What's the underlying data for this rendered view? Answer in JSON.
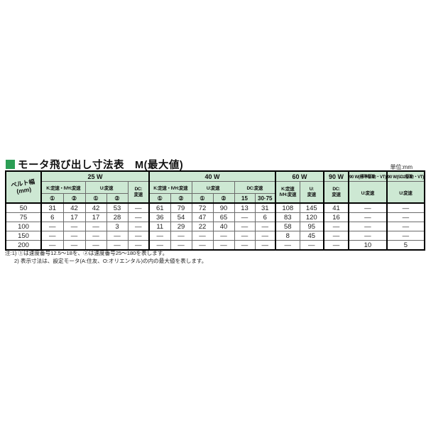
{
  "header": {
    "title": "モータ飛び出し寸法表　M(最大値)",
    "unit_label": "単位:mm",
    "accent_green": "#2b9e55",
    "header_bg": "#cde8d3"
  },
  "table": {
    "corner": {
      "line1": "ベルト幅",
      "line2": "(mm)"
    },
    "top_headers": {
      "w25": "25 W",
      "w40": "40 W",
      "w60": "60 W",
      "w90": "90 W",
      "w90std": "90 W(標準駆動・VT)",
      "w90sd2": "90 W(SD2駆動・VT)"
    },
    "sub_headers": {
      "k_ivh": "K:定速・IVH:変速",
      "u": "U:変速",
      "dc_line1": "DC:",
      "dc_line2": "変速",
      "dc_inline": "DC:変速",
      "k60_line1": "K:定速",
      "k60_line2": "IVH:変速",
      "u_line1": "U:",
      "u_line2": "変速",
      "c1": "①",
      "c2": "②",
      "dc15": "15",
      "dc3075": "30·75"
    },
    "group_starts": [
      0,
      5,
      11,
      13,
      14,
      15
    ],
    "rows": [
      {
        "label": "50",
        "values": [
          "31",
          "42",
          "42",
          "53",
          "—",
          "61",
          "79",
          "72",
          "90",
          "13",
          "31",
          "108",
          "145",
          "41",
          "—",
          "—"
        ]
      },
      {
        "label": "75",
        "values": [
          "6",
          "17",
          "17",
          "28",
          "—",
          "36",
          "54",
          "47",
          "65",
          "—",
          "6",
          "83",
          "120",
          "16",
          "—",
          "—"
        ]
      },
      {
        "label": "100",
        "values": [
          "—",
          "—",
          "—",
          "3",
          "—",
          "11",
          "29",
          "22",
          "40",
          "—",
          "—",
          "58",
          "95",
          "—",
          "—",
          "—"
        ]
      },
      {
        "label": "150",
        "values": [
          "—",
          "—",
          "—",
          "—",
          "—",
          "—",
          "—",
          "—",
          "—",
          "—",
          "—",
          "8",
          "45",
          "—",
          "—",
          "—"
        ]
      },
      {
        "label": "200",
        "values": [
          "—",
          "—",
          "—",
          "—",
          "—",
          "—",
          "—",
          "—",
          "—",
          "—",
          "—",
          "—",
          "—",
          "—",
          "10",
          "5"
        ]
      }
    ]
  },
  "notes": [
    "注:1) ①は速度番号12.5〜18を、②は速度番号25〜180を表します。",
    "2) 表示寸法は、設定モータ(A:住友、O:オリエンタル)の内の最大値を表します。"
  ]
}
